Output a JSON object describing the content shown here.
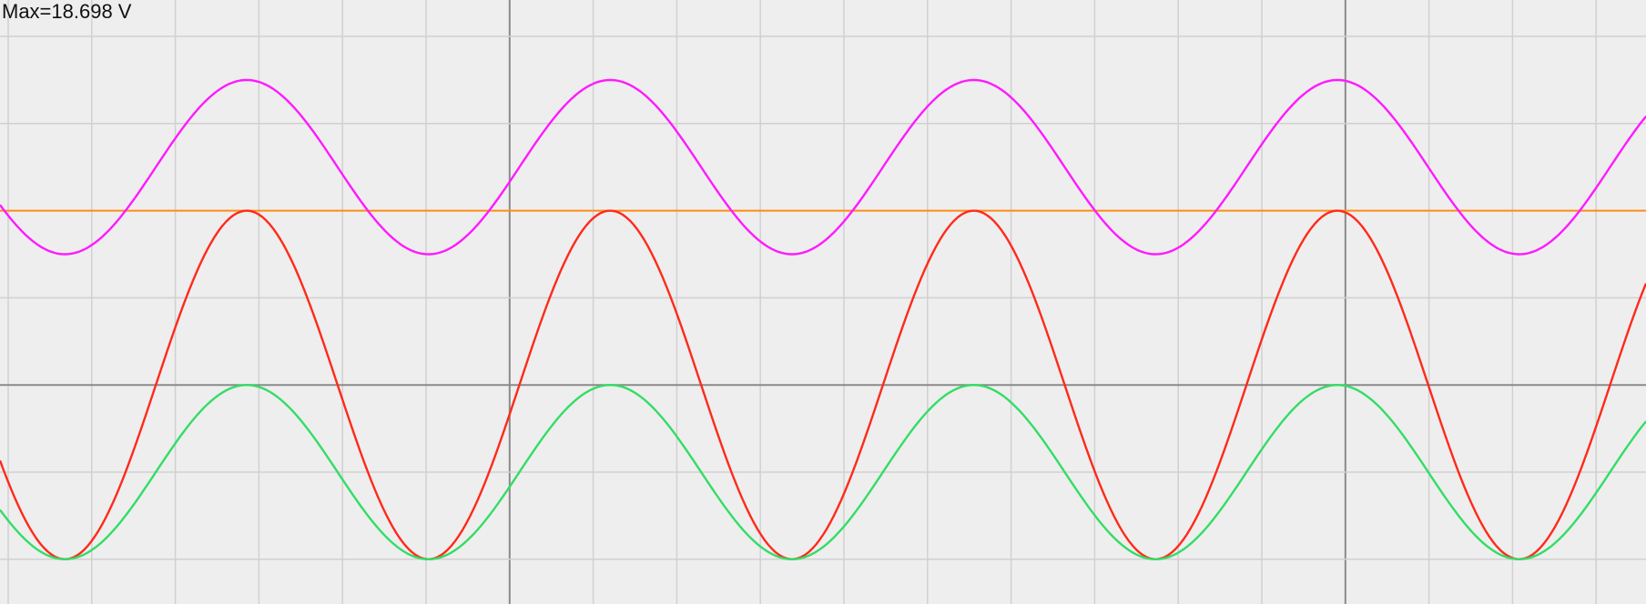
{
  "readout": {
    "max_label": "Max=18.698 V"
  },
  "colors": {
    "background": "#eeeeee",
    "grid": "#d0d0d0",
    "grid_major": "#8a8a8a",
    "level": "#ff8c1a"
  },
  "chart_data": {
    "type": "line",
    "title": "",
    "xlabel": "",
    "ylabel": "",
    "grid": true,
    "x_divisions": {
      "count": 20,
      "first_offset": 0.1,
      "major_every": 10
    },
    "y_divisions": {
      "count": 7,
      "first_offset": 0.1,
      "major_at": [
        4.5
      ]
    },
    "xlim": [
      0,
      19.6
    ],
    "ylim": [
      -2.5,
      4.5
    ],
    "period_div": 5,
    "sample_step_div": 0.05,
    "series": [
      {
        "color": "#ff1aff",
        "offset": 2.5,
        "amplitude": 1.0,
        "phase_div": 0.1
      },
      {
        "color": "#ff2a1a",
        "offset": 0.0,
        "amplitude": 2.0,
        "phase_div": 0.1
      },
      {
        "color": "#33dd66",
        "offset": -1.0,
        "amplitude": 1.0,
        "phase_div": 0.1
      }
    ],
    "level_line": {
      "color": "#ff8c1a",
      "value": 2.0
    }
  }
}
